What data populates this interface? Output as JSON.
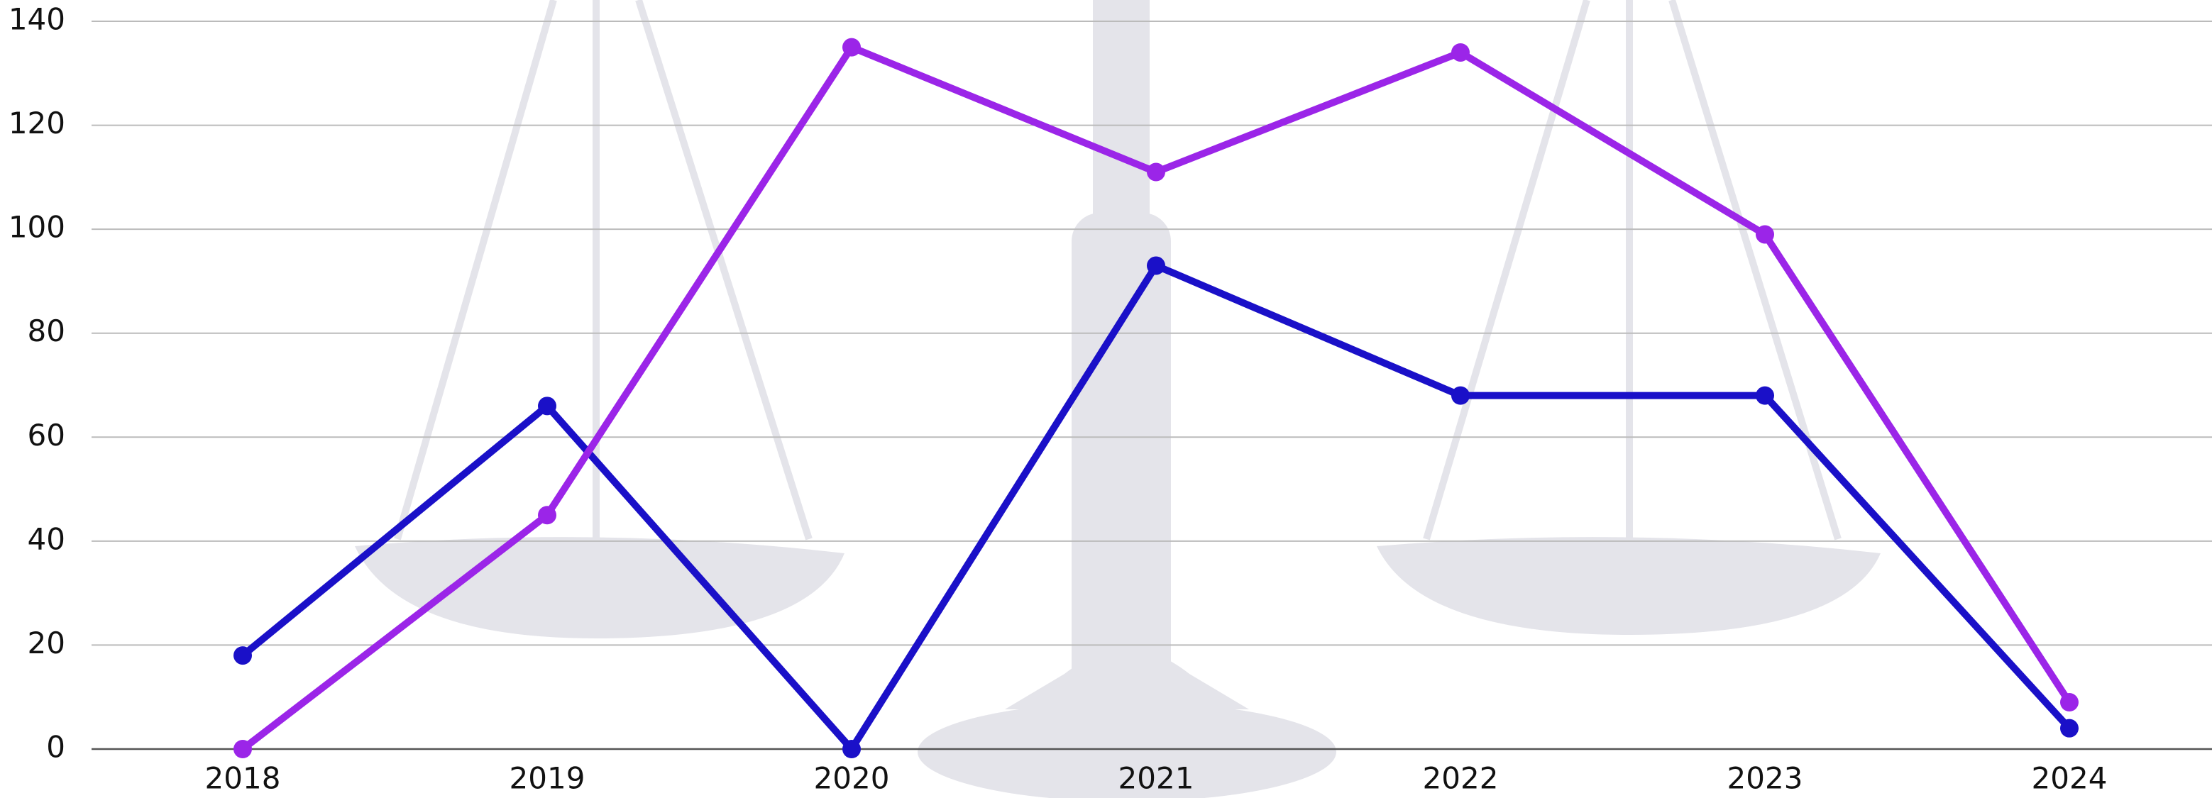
{
  "chart_data": {
    "type": "line",
    "categories": [
      "2018",
      "2019",
      "2020",
      "2021",
      "2022",
      "2023",
      "2024"
    ],
    "series": [
      {
        "color": "#1a10c8",
        "values": [
          18,
          66,
          0,
          93,
          68,
          68,
          4
        ]
      },
      {
        "color": "#9b25e8",
        "values": [
          0,
          45,
          135,
          111,
          134,
          99,
          9
        ]
      }
    ],
    "ylim": [
      0,
      140
    ],
    "yticks": [
      0,
      20,
      40,
      60,
      80,
      100,
      120,
      140
    ],
    "grid": true
  }
}
